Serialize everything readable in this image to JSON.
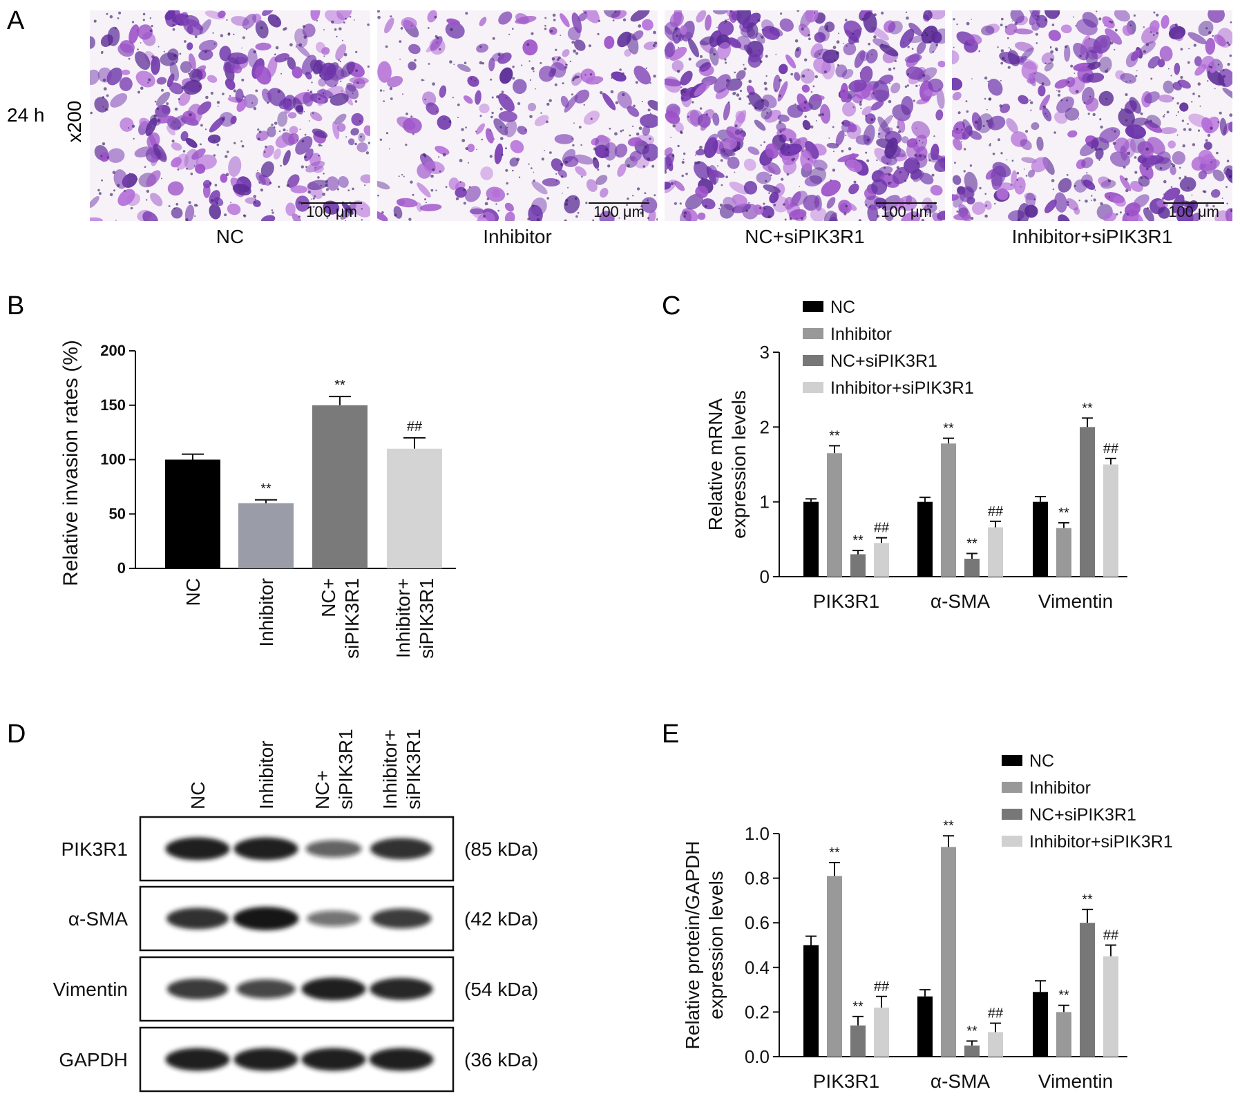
{
  "panel_a": {
    "letter": "A",
    "time_label": "24 h",
    "magnification": "x200",
    "scale_bar_text": "100 μm",
    "micrographs": [
      {
        "label": "NC",
        "density": 0.68
      },
      {
        "label": "Inhibitor",
        "density": 0.42
      },
      {
        "label": "NC+siPIK3R1",
        "density": 0.95
      },
      {
        "label": "Inhibitor+siPIK3R1",
        "density": 0.7
      }
    ],
    "stain_colors": [
      "#7b3fb2",
      "#9c52c8",
      "#6a32a8",
      "#b46fd8",
      "#5a2b95"
    ]
  },
  "panel_b": {
    "letter": "B",
    "chart_data": {
      "type": "bar",
      "categories": [
        "NC",
        "Inhibitor",
        "NC+ siPIK3R1",
        "Inhibitor+ siPIK3R1"
      ],
      "category_lines": [
        [
          "NC"
        ],
        [
          "Inhibitor"
        ],
        [
          "NC+",
          "siPIK3R1"
        ],
        [
          "Inhibitor+",
          "siPIK3R1"
        ]
      ],
      "values": [
        100,
        60,
        150,
        110
      ],
      "errors": [
        5,
        3,
        8,
        10
      ],
      "annotations": [
        "",
        "**",
        "**",
        "##"
      ],
      "colors": [
        "#000000",
        "#9a9ca8",
        "#7a7a7a",
        "#d4d4d4"
      ],
      "ylabel": "Relative invasion rates (%)",
      "ylim": [
        0,
        200
      ],
      "yticks": [
        0,
        50,
        100,
        150,
        200
      ]
    }
  },
  "panel_c": {
    "letter": "C",
    "chart_data": {
      "type": "bar",
      "categories": [
        "PIK3R1",
        "α-SMA",
        "Vimentin"
      ],
      "series": [
        {
          "name": "NC",
          "values": [
            1.0,
            1.0,
            1.0
          ],
          "errors": [
            0.04,
            0.06,
            0.07
          ],
          "annotations": [
            "",
            "",
            ""
          ],
          "color": "#000000"
        },
        {
          "name": "Inhibitor",
          "values": [
            1.65,
            1.78,
            0.65
          ],
          "errors": [
            0.1,
            0.07,
            0.07
          ],
          "annotations": [
            "**",
            "**",
            "**"
          ],
          "color": "#999999"
        },
        {
          "name": "NC+siPIK3R1",
          "values": [
            0.3,
            0.24,
            2.0
          ],
          "errors": [
            0.05,
            0.07,
            0.12
          ],
          "annotations": [
            "**",
            "**",
            "**"
          ],
          "color": "#777777"
        },
        {
          "name": "Inhibitor+siPIK3R1",
          "values": [
            0.45,
            0.66,
            1.5
          ],
          "errors": [
            0.07,
            0.08,
            0.08
          ],
          "annotations": [
            "##",
            "##",
            "##"
          ],
          "color": "#d0d0d0"
        }
      ],
      "ylabel_lines": [
        "Relative mRNA",
        "expression levels"
      ],
      "ylim": [
        0,
        3
      ],
      "yticks": [
        0,
        1,
        2,
        3
      ],
      "legend_position": "top-left"
    }
  },
  "panel_d": {
    "letter": "D",
    "lanes": [
      [
        "NC"
      ],
      [
        "Inhibitor"
      ],
      [
        "NC+",
        "siPIK3R1"
      ],
      [
        "Inhibitor+",
        "siPIK3R1"
      ]
    ],
    "proteins": [
      {
        "name": "PIK3R1",
        "size": "(85 kDa)",
        "intensities": [
          0.95,
          0.95,
          0.55,
          0.85
        ]
      },
      {
        "name": "α-SMA",
        "size": "(42 kDa)",
        "intensities": [
          0.85,
          1.0,
          0.45,
          0.75
        ]
      },
      {
        "name": "Vimentin",
        "size": "(54 kDa)",
        "intensities": [
          0.8,
          0.7,
          0.95,
          0.9
        ]
      },
      {
        "name": "GAPDH",
        "size": "(36 kDa)",
        "intensities": [
          0.95,
          0.95,
          0.95,
          0.95
        ]
      }
    ]
  },
  "panel_e": {
    "letter": "E",
    "chart_data": {
      "type": "bar",
      "categories": [
        "PIK3R1",
        "α-SMA",
        "Vimentin"
      ],
      "series": [
        {
          "name": "NC",
          "values": [
            0.5,
            0.27,
            0.29
          ],
          "errors": [
            0.04,
            0.03,
            0.05
          ],
          "annotations": [
            "",
            "",
            ""
          ],
          "color": "#000000"
        },
        {
          "name": "Inhibitor",
          "values": [
            0.81,
            0.94,
            0.2
          ],
          "errors": [
            0.06,
            0.05,
            0.03
          ],
          "annotations": [
            "**",
            "**",
            "**"
          ],
          "color": "#999999"
        },
        {
          "name": "NC+siPIK3R1",
          "values": [
            0.14,
            0.05,
            0.6
          ],
          "errors": [
            0.04,
            0.02,
            0.06
          ],
          "annotations": [
            "**",
            "**",
            "**"
          ],
          "color": "#777777"
        },
        {
          "name": "Inhibitor+siPIK3R1",
          "values": [
            0.22,
            0.11,
            0.45
          ],
          "errors": [
            0.05,
            0.04,
            0.05
          ],
          "annotations": [
            "##",
            "##",
            "##"
          ],
          "color": "#d0d0d0"
        }
      ],
      "ylabel_lines": [
        "Relative protein/GAPDH",
        "expression levels"
      ],
      "ylim": [
        0,
        1.0
      ],
      "yticks": [
        "0.0",
        "0.2",
        "0.4",
        "0.6",
        "0.8",
        "1.0"
      ],
      "legend_position": "top-right"
    }
  }
}
